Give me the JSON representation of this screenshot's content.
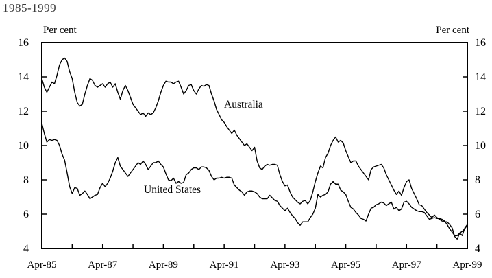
{
  "chart_data": {
    "type": "line",
    "title": "1985-1999",
    "y_axis_label_left": "Per cent",
    "y_axis_label_right": "Per cent",
    "ylim": [
      4,
      16
    ],
    "yticks": [
      4,
      6,
      8,
      10,
      12,
      14,
      16
    ],
    "x_unit": "monthly",
    "x_range": [
      "Apr-85",
      "Apr-99"
    ],
    "xtick_labels": [
      "Apr-85",
      "Apr-87",
      "Apr-89",
      "Apr-91",
      "Apr-93",
      "Apr-95",
      "Apr-97",
      "Apr-99"
    ],
    "xtick_month_indices": [
      0,
      24,
      48,
      72,
      96,
      120,
      144,
      168
    ],
    "minor_xtick_every_months": 12,
    "grid": false,
    "legend": "inline-annotations",
    "line_color": "#000000",
    "series": [
      {
        "name": "Australia",
        "values": [
          13.9,
          13.4,
          13.1,
          13.4,
          13.7,
          13.6,
          14.1,
          14.7,
          15.0,
          15.1,
          14.9,
          14.3,
          13.9,
          13.1,
          12.5,
          12.3,
          12.4,
          13.0,
          13.5,
          13.9,
          13.8,
          13.5,
          13.4,
          13.5,
          13.6,
          13.4,
          13.6,
          13.7,
          13.4,
          13.6,
          13.1,
          12.7,
          13.2,
          13.5,
          13.2,
          12.8,
          12.4,
          12.2,
          12.0,
          11.8,
          11.9,
          11.7,
          11.9,
          11.8,
          11.9,
          12.2,
          12.6,
          13.1,
          13.5,
          13.75,
          13.7,
          13.7,
          13.6,
          13.7,
          13.75,
          13.4,
          13.0,
          13.2,
          13.5,
          13.55,
          13.2,
          13.0,
          13.3,
          13.5,
          13.45,
          13.55,
          13.5,
          13.0,
          12.6,
          12.1,
          11.8,
          11.5,
          11.35,
          11.1,
          10.9,
          10.7,
          10.9,
          10.6,
          10.4,
          10.2,
          10.0,
          10.1,
          9.9,
          9.7,
          9.9,
          9.1,
          8.7,
          8.6,
          8.8,
          8.9,
          8.85,
          8.9,
          8.9,
          8.85,
          8.3,
          7.9,
          7.65,
          7.7,
          7.3,
          7.0,
          6.85,
          6.7,
          6.6,
          6.75,
          6.8,
          6.6,
          6.8,
          7.3,
          7.9,
          8.4,
          8.8,
          8.7,
          9.3,
          9.55,
          10.0,
          10.3,
          10.5,
          10.2,
          10.3,
          10.15,
          9.7,
          9.35,
          9.0,
          9.1,
          9.1,
          8.8,
          8.6,
          8.4,
          8.2,
          8.0,
          8.6,
          8.75,
          8.8,
          8.85,
          8.9,
          8.7,
          8.3,
          8.0,
          7.7,
          7.4,
          7.15,
          7.35,
          7.1,
          7.55,
          7.9,
          8.0,
          7.5,
          7.2,
          6.9,
          6.55,
          6.5,
          6.3,
          6.1,
          5.95,
          5.8,
          5.95,
          5.8,
          5.7,
          5.6,
          5.55,
          5.55,
          5.4,
          5.2,
          4.7,
          4.55,
          4.9,
          4.75,
          5.2,
          5.4
        ]
      },
      {
        "name": "United States",
        "values": [
          11.3,
          10.7,
          10.2,
          10.35,
          10.3,
          10.35,
          10.3,
          10.0,
          9.5,
          9.15,
          8.4,
          7.6,
          7.2,
          7.55,
          7.5,
          7.1,
          7.2,
          7.35,
          7.15,
          6.9,
          7.0,
          7.1,
          7.15,
          7.55,
          7.8,
          7.6,
          7.8,
          8.1,
          8.5,
          9.0,
          9.3,
          8.8,
          8.6,
          8.4,
          8.2,
          8.4,
          8.6,
          8.8,
          9.0,
          8.9,
          9.1,
          8.9,
          8.6,
          8.8,
          9.0,
          9.0,
          9.1,
          8.9,
          8.75,
          8.35,
          8.0,
          7.95,
          8.1,
          7.8,
          7.9,
          7.8,
          7.85,
          8.3,
          8.4,
          8.6,
          8.7,
          8.7,
          8.6,
          8.75,
          8.75,
          8.7,
          8.55,
          8.2,
          8.0,
          8.1,
          8.1,
          8.15,
          8.1,
          8.15,
          8.15,
          8.1,
          7.7,
          7.55,
          7.4,
          7.3,
          7.1,
          7.3,
          7.35,
          7.35,
          7.3,
          7.2,
          7.0,
          6.9,
          6.9,
          6.9,
          7.1,
          6.95,
          6.8,
          6.75,
          6.5,
          6.35,
          6.2,
          6.35,
          6.1,
          5.9,
          5.75,
          5.5,
          5.35,
          5.55,
          5.55,
          5.55,
          5.8,
          6.0,
          6.35,
          7.15,
          7.0,
          7.1,
          7.15,
          7.3,
          7.75,
          7.9,
          7.75,
          7.75,
          7.4,
          7.3,
          7.15,
          6.75,
          6.4,
          6.3,
          6.1,
          5.95,
          5.75,
          5.7,
          5.6,
          6.0,
          6.35,
          6.4,
          6.55,
          6.6,
          6.7,
          6.65,
          6.5,
          6.6,
          6.7,
          6.3,
          6.4,
          6.2,
          6.3,
          6.7,
          6.75,
          6.6,
          6.4,
          6.3,
          6.2,
          6.15,
          6.15,
          6.1,
          5.9,
          5.7,
          5.75,
          5.8,
          5.75,
          5.75,
          5.7,
          5.6,
          5.4,
          5.15,
          4.95,
          4.75,
          4.75,
          4.9,
          5.0,
          5.15,
          5.35
        ]
      }
    ]
  }
}
